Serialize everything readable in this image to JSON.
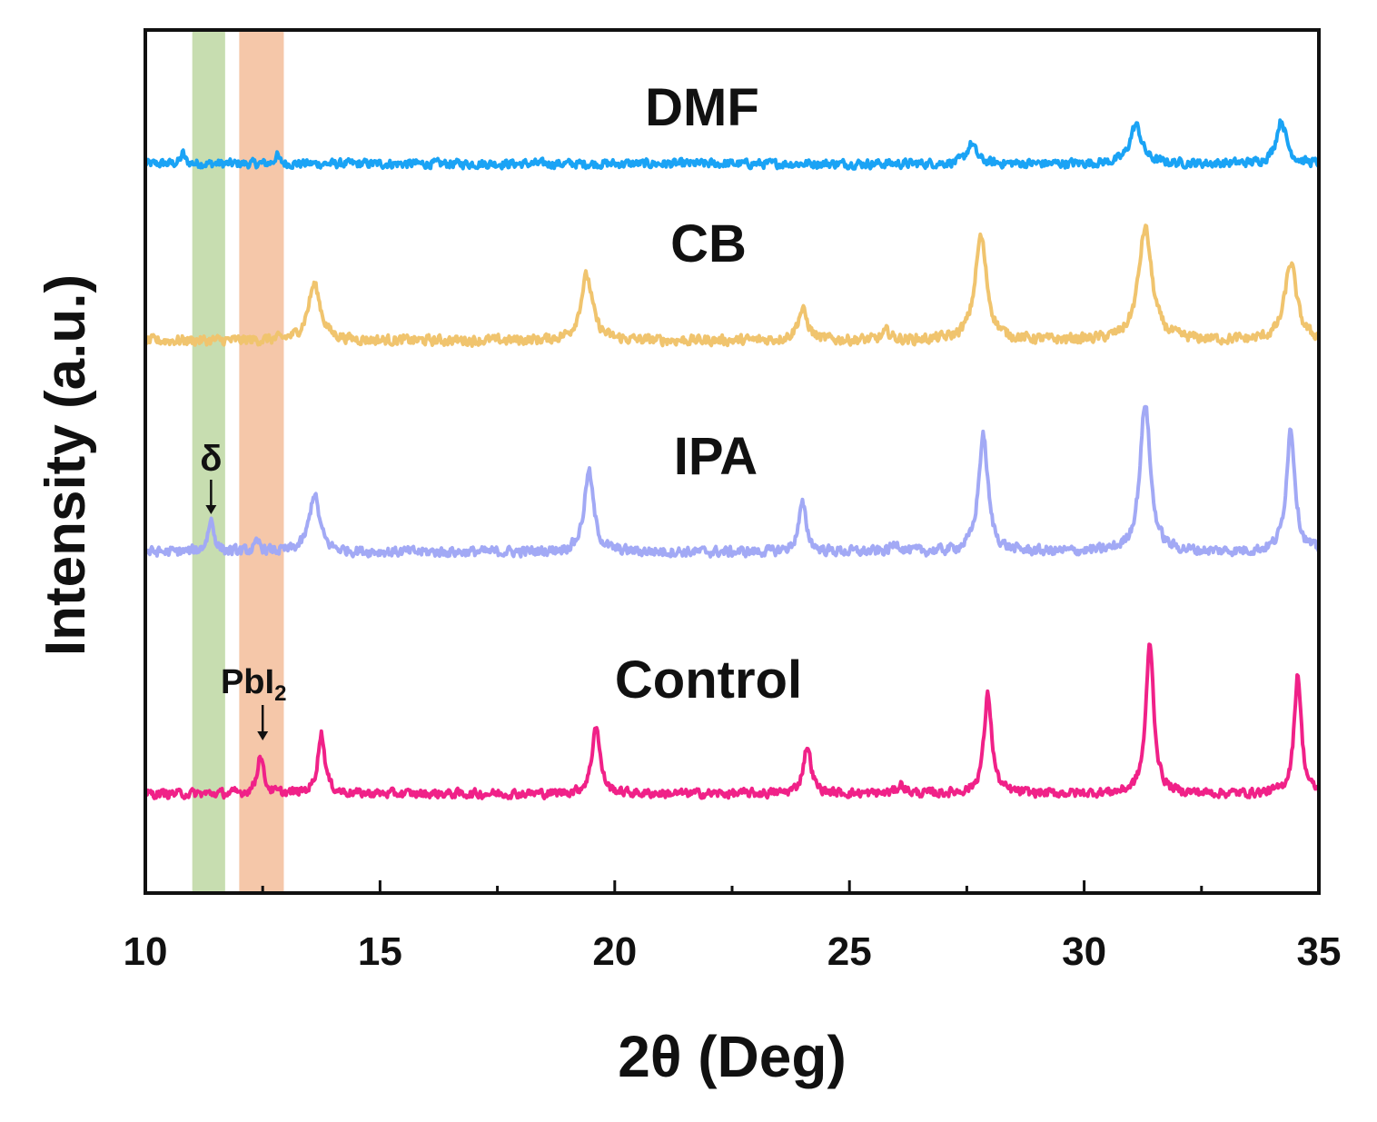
{
  "chart_data": {
    "type": "line",
    "title": "",
    "xlabel": "2θ (Deg)",
    "ylabel": "Intensity (a.u.)",
    "xlim": [
      10,
      35
    ],
    "ylim": [
      0,
      100
    ],
    "xticks": [
      10,
      15,
      20,
      25,
      30,
      35
    ],
    "xtick_labels": [
      "10",
      "15",
      "20",
      "25",
      "30",
      "35"
    ],
    "grid": false,
    "legend": "none (series labeled inline above each trace)",
    "bands": [
      {
        "name": "delta-phase",
        "from": 11.0,
        "to": 11.7,
        "color": "#c7ddb0"
      },
      {
        "name": "PbI2",
        "from": 12.0,
        "to": 12.95,
        "color": "#f5c7a9"
      }
    ],
    "annotations": [
      {
        "text": "δ",
        "x": 11.4,
        "series": "IPA"
      },
      {
        "text": "PbI",
        "subscript": "2",
        "x": 12.5,
        "series": "Control"
      }
    ],
    "series": [
      {
        "name": "DMF",
        "color": "#1aa3f5",
        "baseline": 84.5,
        "noise": 0.7,
        "peaks": [
          {
            "x": 10.8,
            "h": 1.2,
            "w": 0.05
          },
          {
            "x": 12.8,
            "h": 1.0,
            "w": 0.05
          },
          {
            "x": 27.6,
            "h": 2.3,
            "w": 0.12
          },
          {
            "x": 31.1,
            "h": 4.5,
            "w": 0.15
          },
          {
            "x": 34.2,
            "h": 5.0,
            "w": 0.13
          }
        ]
      },
      {
        "name": "CB",
        "color": "#f0c46e",
        "baseline": 64.0,
        "noise": 0.8,
        "peaks": [
          {
            "x": 13.6,
            "h": 6.5,
            "w": 0.16
          },
          {
            "x": 19.4,
            "h": 7.5,
            "w": 0.15
          },
          {
            "x": 24.0,
            "h": 3.5,
            "w": 0.13
          },
          {
            "x": 25.8,
            "h": 1.0,
            "w": 0.1
          },
          {
            "x": 27.8,
            "h": 12.0,
            "w": 0.15
          },
          {
            "x": 31.3,
            "h": 13.0,
            "w": 0.17
          },
          {
            "x": 34.4,
            "h": 9.0,
            "w": 0.15
          }
        ]
      },
      {
        "name": "IPA",
        "color": "#a2a9f5",
        "baseline": 39.5,
        "noise": 0.8,
        "peaks": [
          {
            "x": 11.4,
            "h": 3.7,
            "w": 0.08
          },
          {
            "x": 12.4,
            "h": 1.0,
            "w": 0.08
          },
          {
            "x": 13.6,
            "h": 6.7,
            "w": 0.13
          },
          {
            "x": 19.45,
            "h": 9.3,
            "w": 0.12
          },
          {
            "x": 24.0,
            "h": 5.5,
            "w": 0.1
          },
          {
            "x": 26.0,
            "h": 1.0,
            "w": 0.1
          },
          {
            "x": 27.85,
            "h": 13.5,
            "w": 0.12
          },
          {
            "x": 31.3,
            "h": 17.3,
            "w": 0.13
          },
          {
            "x": 34.4,
            "h": 14.3,
            "w": 0.11
          }
        ]
      },
      {
        "name": "Control",
        "color": "#f02188",
        "baseline": 11.5,
        "noise": 0.7,
        "peaks": [
          {
            "x": 12.45,
            "h": 4.5,
            "w": 0.08
          },
          {
            "x": 13.75,
            "h": 7.0,
            "w": 0.09
          },
          {
            "x": 19.6,
            "h": 8.0,
            "w": 0.1
          },
          {
            "x": 24.1,
            "h": 5.5,
            "w": 0.1
          },
          {
            "x": 26.1,
            "h": 1.0,
            "w": 0.1
          },
          {
            "x": 27.95,
            "h": 11.5,
            "w": 0.1
          },
          {
            "x": 31.4,
            "h": 17.5,
            "w": 0.1
          },
          {
            "x": 34.55,
            "h": 14.0,
            "w": 0.09
          }
        ]
      }
    ]
  }
}
